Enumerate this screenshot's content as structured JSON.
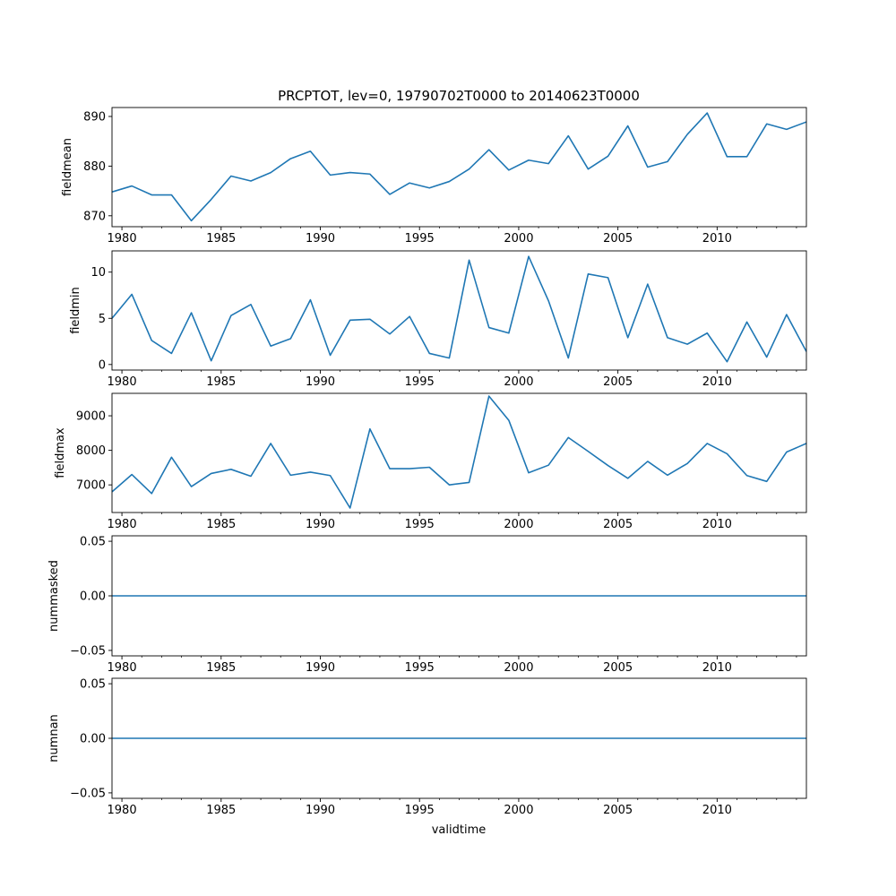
{
  "figure": {
    "title": "PRCPTOT, lev=0, 19790702T0000 to 20140623T0000",
    "xlabel": "validtime"
  },
  "colors": {
    "line": "#1f77b4",
    "axes": "#000000",
    "background": "#ffffff"
  },
  "chart_data": [
    {
      "type": "line",
      "ylabel": "fieldmean",
      "xlim": [
        1979.5,
        2014.5
      ],
      "ylim": [
        867.8,
        891.8
      ],
      "xticks": [
        1980,
        1985,
        1990,
        1995,
        2000,
        2005,
        2010
      ],
      "yticks": [
        870,
        880,
        890
      ],
      "grid": false,
      "x": [
        1979.5,
        1980.5,
        1981.5,
        1982.5,
        1983.5,
        1984.5,
        1985.5,
        1986.5,
        1987.5,
        1988.5,
        1989.5,
        1990.5,
        1991.5,
        1992.5,
        1993.5,
        1994.5,
        1995.5,
        1996.5,
        1997.5,
        1998.5,
        1999.5,
        2000.5,
        2001.5,
        2002.5,
        2003.5,
        2004.5,
        2005.5,
        2006.5,
        2007.5,
        2008.5,
        2009.5,
        2010.5,
        2011.5,
        2012.5,
        2013.5,
        2014.5
      ],
      "series": [
        {
          "values": [
            874.8,
            876.0,
            874.2,
            874.2,
            869.0,
            873.3,
            878.0,
            877.0,
            878.7,
            881.5,
            883.0,
            878.2,
            878.7,
            878.4,
            874.3,
            876.6,
            875.6,
            876.9,
            879.4,
            883.3,
            879.2,
            881.2,
            880.5,
            886.1,
            879.4,
            882.0,
            888.1,
            879.8,
            880.9,
            886.4,
            890.7,
            881.9,
            881.9,
            888.5,
            887.4,
            888.9
          ]
        }
      ]
    },
    {
      "type": "line",
      "ylabel": "fieldmin",
      "xlim": [
        1979.5,
        2014.5
      ],
      "ylim": [
        -0.6,
        12.3
      ],
      "xticks": [
        1980,
        1985,
        1990,
        1995,
        2000,
        2005,
        2010
      ],
      "yticks": [
        0,
        5,
        10
      ],
      "grid": false,
      "x": [
        1979.5,
        1980.5,
        1981.5,
        1982.5,
        1983.5,
        1984.5,
        1985.5,
        1986.5,
        1987.5,
        1988.5,
        1989.5,
        1990.5,
        1991.5,
        1992.5,
        1993.5,
        1994.5,
        1995.5,
        1996.5,
        1997.5,
        1998.5,
        1999.5,
        2000.5,
        2001.5,
        2002.5,
        2003.5,
        2004.5,
        2005.5,
        2006.5,
        2007.5,
        2008.5,
        2009.5,
        2010.5,
        2011.5,
        2012.5,
        2013.5,
        2014.5
      ],
      "series": [
        {
          "values": [
            5.0,
            7.6,
            2.6,
            1.2,
            5.6,
            0.4,
            5.3,
            6.5,
            2.0,
            2.8,
            7.0,
            1.0,
            4.8,
            4.9,
            3.3,
            5.2,
            1.2,
            0.7,
            11.3,
            4.0,
            3.4,
            11.7,
            6.9,
            0.7,
            9.8,
            9.4,
            2.9,
            8.7,
            2.9,
            2.2,
            3.4,
            0.3,
            4.6,
            0.8,
            5.4,
            1.4
          ]
        }
      ]
    },
    {
      "type": "line",
      "ylabel": "fieldmax",
      "xlim": [
        1979.5,
        2014.5
      ],
      "ylim": [
        6200,
        9650
      ],
      "xticks": [
        1980,
        1985,
        1990,
        1995,
        2000,
        2005,
        2010
      ],
      "yticks": [
        7000,
        8000,
        9000
      ],
      "grid": false,
      "x": [
        1979.5,
        1980.5,
        1981.5,
        1982.5,
        1983.5,
        1984.5,
        1985.5,
        1986.5,
        1987.5,
        1988.5,
        1989.5,
        1990.5,
        1991.5,
        1992.5,
        1993.5,
        1994.5,
        1995.5,
        1996.5,
        1997.5,
        1998.5,
        1999.5,
        2000.5,
        2001.5,
        2002.5,
        2003.5,
        2004.5,
        2005.5,
        2006.5,
        2007.5,
        2008.5,
        2009.5,
        2010.5,
        2011.5,
        2012.5,
        2013.5,
        2014.5
      ],
      "series": [
        {
          "values": [
            6800,
            7300,
            6750,
            7800,
            6950,
            7330,
            7450,
            7250,
            8200,
            7280,
            7370,
            7270,
            6330,
            8620,
            7470,
            7470,
            7510,
            7000,
            7070,
            9570,
            8870,
            7350,
            7570,
            8370,
            7970,
            7560,
            7190,
            7680,
            7280,
            7620,
            8200,
            7900,
            7270,
            7100,
            7950,
            8200
          ]
        }
      ]
    },
    {
      "type": "line",
      "ylabel": "nummasked",
      "xlim": [
        1979.5,
        2014.5
      ],
      "ylim": [
        -0.055,
        0.055
      ],
      "xticks": [
        1980,
        1985,
        1990,
        1995,
        2000,
        2005,
        2010
      ],
      "yticks": [
        -0.05,
        0.0,
        0.05
      ],
      "grid": false,
      "x": [
        1979.5,
        2014.5
      ],
      "series": [
        {
          "values": [
            0.0,
            0.0
          ]
        }
      ]
    },
    {
      "type": "line",
      "ylabel": "numnan",
      "xlim": [
        1979.5,
        2014.5
      ],
      "ylim": [
        -0.055,
        0.055
      ],
      "xticks": [
        1980,
        1985,
        1990,
        1995,
        2000,
        2005,
        2010
      ],
      "yticks": [
        -0.05,
        0.0,
        0.05
      ],
      "grid": false,
      "x": [
        1979.5,
        2014.5
      ],
      "series": [
        {
          "values": [
            0.0,
            0.0
          ]
        }
      ]
    }
  ]
}
